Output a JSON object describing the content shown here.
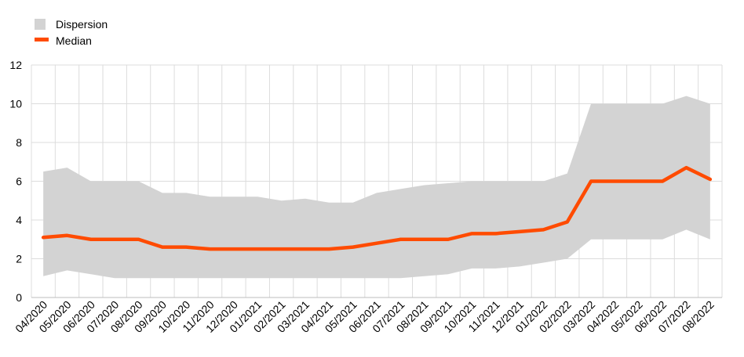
{
  "chart_data": {
    "type": "area",
    "title": "",
    "xlabel": "",
    "ylabel": "",
    "ylim": [
      0,
      12
    ],
    "yticks": [
      "0",
      "2",
      "4",
      "6",
      "8",
      "10",
      "12"
    ],
    "grid": true,
    "legend_position": "top-left",
    "categories": [
      "04/2020",
      "05/2020",
      "06/2020",
      "07/2020",
      "08/2020",
      "09/2020",
      "10/2020",
      "11/2020",
      "12/2020",
      "01/2021",
      "02/2021",
      "03/2021",
      "04/2021",
      "05/2021",
      "06/2021",
      "07/2021",
      "08/2021",
      "09/2021",
      "10/2021",
      "11/2021",
      "12/2021",
      "01/2022",
      "02/2022",
      "03/2022",
      "04/2022",
      "05/2022",
      "06/2022",
      "07/2022",
      "08/2022"
    ],
    "series": [
      {
        "name": "Dispersion",
        "kind": "band",
        "color": "#d3d3d3",
        "upper": [
          6.5,
          6.7,
          6.0,
          6.0,
          6.0,
          5.4,
          5.4,
          5.2,
          5.2,
          5.2,
          5.0,
          5.1,
          4.9,
          4.9,
          5.4,
          5.6,
          5.8,
          5.9,
          6.0,
          6.0,
          6.0,
          6.0,
          6.4,
          10.0,
          10.0,
          10.0,
          10.0,
          10.4,
          10.0
        ],
        "lower": [
          1.1,
          1.4,
          1.2,
          1.0,
          1.0,
          1.0,
          1.0,
          1.0,
          1.0,
          1.0,
          1.0,
          1.0,
          1.0,
          1.0,
          1.0,
          1.0,
          1.1,
          1.2,
          1.5,
          1.5,
          1.6,
          1.8,
          2.0,
          3.0,
          3.0,
          3.0,
          3.0,
          3.5,
          3.0
        ]
      },
      {
        "name": "Median",
        "kind": "line",
        "color": "#ff4b00",
        "values": [
          3.1,
          3.2,
          3.0,
          3.0,
          3.0,
          2.6,
          2.6,
          2.5,
          2.5,
          2.5,
          2.5,
          2.5,
          2.5,
          2.6,
          2.8,
          3.0,
          3.0,
          3.0,
          3.3,
          3.3,
          3.4,
          3.5,
          3.9,
          6.0,
          6.0,
          6.0,
          6.0,
          6.7,
          6.1
        ]
      }
    ]
  }
}
